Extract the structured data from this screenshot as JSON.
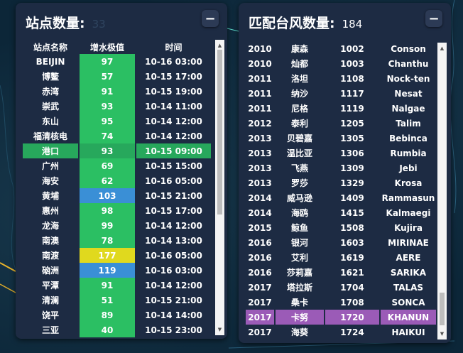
{
  "station_panel": {
    "title": "站点数量:",
    "count": "33",
    "minimize_label": "−",
    "headers": [
      "站点名称",
      "增水极值",
      "时间"
    ],
    "rows": [
      {
        "name": "BEIJIN",
        "value": "97",
        "time": "10-16 03:00",
        "color": "green"
      },
      {
        "name": "博鳌",
        "value": "57",
        "time": "10-15 17:00",
        "color": "green"
      },
      {
        "name": "赤湾",
        "value": "91",
        "time": "10-15 19:00",
        "color": "green"
      },
      {
        "name": "崇武",
        "value": "93",
        "time": "10-14 11:00",
        "color": "green"
      },
      {
        "name": "东山",
        "value": "95",
        "time": "10-14 12:00",
        "color": "green"
      },
      {
        "name": "福清核电",
        "value": "74",
        "time": "10-14 12:00",
        "color": "green"
      },
      {
        "name": "港口",
        "value": "93",
        "time": "10-15 09:00",
        "color": "green",
        "highlight": true
      },
      {
        "name": "广州",
        "value": "69",
        "time": "10-15 15:00",
        "color": "green"
      },
      {
        "name": "海安",
        "value": "62",
        "time": "10-16 05:00",
        "color": "green"
      },
      {
        "name": "黄埔",
        "value": "103",
        "time": "10-15 21:00",
        "color": "blue"
      },
      {
        "name": "惠州",
        "value": "98",
        "time": "10-15 17:00",
        "color": "green"
      },
      {
        "name": "龙海",
        "value": "99",
        "time": "10-14 12:00",
        "color": "green"
      },
      {
        "name": "南澳",
        "value": "78",
        "time": "10-14 13:00",
        "color": "green"
      },
      {
        "name": "南渡",
        "value": "177",
        "time": "10-16 05:00",
        "color": "yellow"
      },
      {
        "name": "硇洲",
        "value": "119",
        "time": "10-16 03:00",
        "color": "blue"
      },
      {
        "name": "平潭",
        "value": "91",
        "time": "10-14 12:00",
        "color": "green"
      },
      {
        "name": "清澜",
        "value": "51",
        "time": "10-15 21:00",
        "color": "green"
      },
      {
        "name": "饶平",
        "value": "89",
        "time": "10-14 14:00",
        "color": "green"
      },
      {
        "name": "三亚",
        "value": "40",
        "time": "10-15 23:00",
        "color": "green"
      }
    ]
  },
  "typhoon_panel": {
    "title": "匹配台风数量:",
    "count": "184",
    "minimize_label": "−",
    "rows": [
      {
        "year": "2010",
        "cn": "康森",
        "num": "1002",
        "en": "Conson"
      },
      {
        "year": "2010",
        "cn": "灿都",
        "num": "1003",
        "en": "Chanthu"
      },
      {
        "year": "2011",
        "cn": "洛坦",
        "num": "1108",
        "en": "Nock-ten"
      },
      {
        "year": "2011",
        "cn": "纳沙",
        "num": "1117",
        "en": "Nesat"
      },
      {
        "year": "2011",
        "cn": "尼格",
        "num": "1119",
        "en": "Nalgae"
      },
      {
        "year": "2012",
        "cn": "泰利",
        "num": "1205",
        "en": "Talim"
      },
      {
        "year": "2013",
        "cn": "贝碧嘉",
        "num": "1305",
        "en": "Bebinca"
      },
      {
        "year": "2013",
        "cn": "温比亚",
        "num": "1306",
        "en": "Rumbia"
      },
      {
        "year": "2013",
        "cn": "飞燕",
        "num": "1309",
        "en": "Jebi"
      },
      {
        "year": "2013",
        "cn": "罗莎",
        "num": "1329",
        "en": "Krosa"
      },
      {
        "year": "2014",
        "cn": "威马逊",
        "num": "1409",
        "en": "Rammasun"
      },
      {
        "year": "2014",
        "cn": "海鸥",
        "num": "1415",
        "en": "Kalmaegi"
      },
      {
        "year": "2015",
        "cn": "鲸鱼",
        "num": "1508",
        "en": "Kujira"
      },
      {
        "year": "2016",
        "cn": "银河",
        "num": "1603",
        "en": "MIRINAE"
      },
      {
        "year": "2016",
        "cn": "艾利",
        "num": "1619",
        "en": "AERE"
      },
      {
        "year": "2016",
        "cn": "莎莉嘉",
        "num": "1621",
        "en": "SARIKA"
      },
      {
        "year": "2017",
        "cn": "塔拉斯",
        "num": "1704",
        "en": "TALAS"
      },
      {
        "year": "2017",
        "cn": "桑卡",
        "num": "1708",
        "en": "SONCA"
      },
      {
        "year": "2017",
        "cn": "卡努",
        "num": "1720",
        "en": "KHANUN",
        "highlight": true
      },
      {
        "year": "2017",
        "cn": "海葵",
        "num": "1724",
        "en": "HAIKUI"
      }
    ]
  },
  "colors": {
    "green": "#2bbf63",
    "blue": "#3a8fd6",
    "yellow": "#e0d91e",
    "row_highlight": "#27a85c",
    "typhoon_highlight": "#9b5bb7"
  },
  "icons": {
    "minimize": "minus-icon",
    "scroll_up": "arrow-up-icon",
    "scroll_down": "arrow-down-icon"
  }
}
